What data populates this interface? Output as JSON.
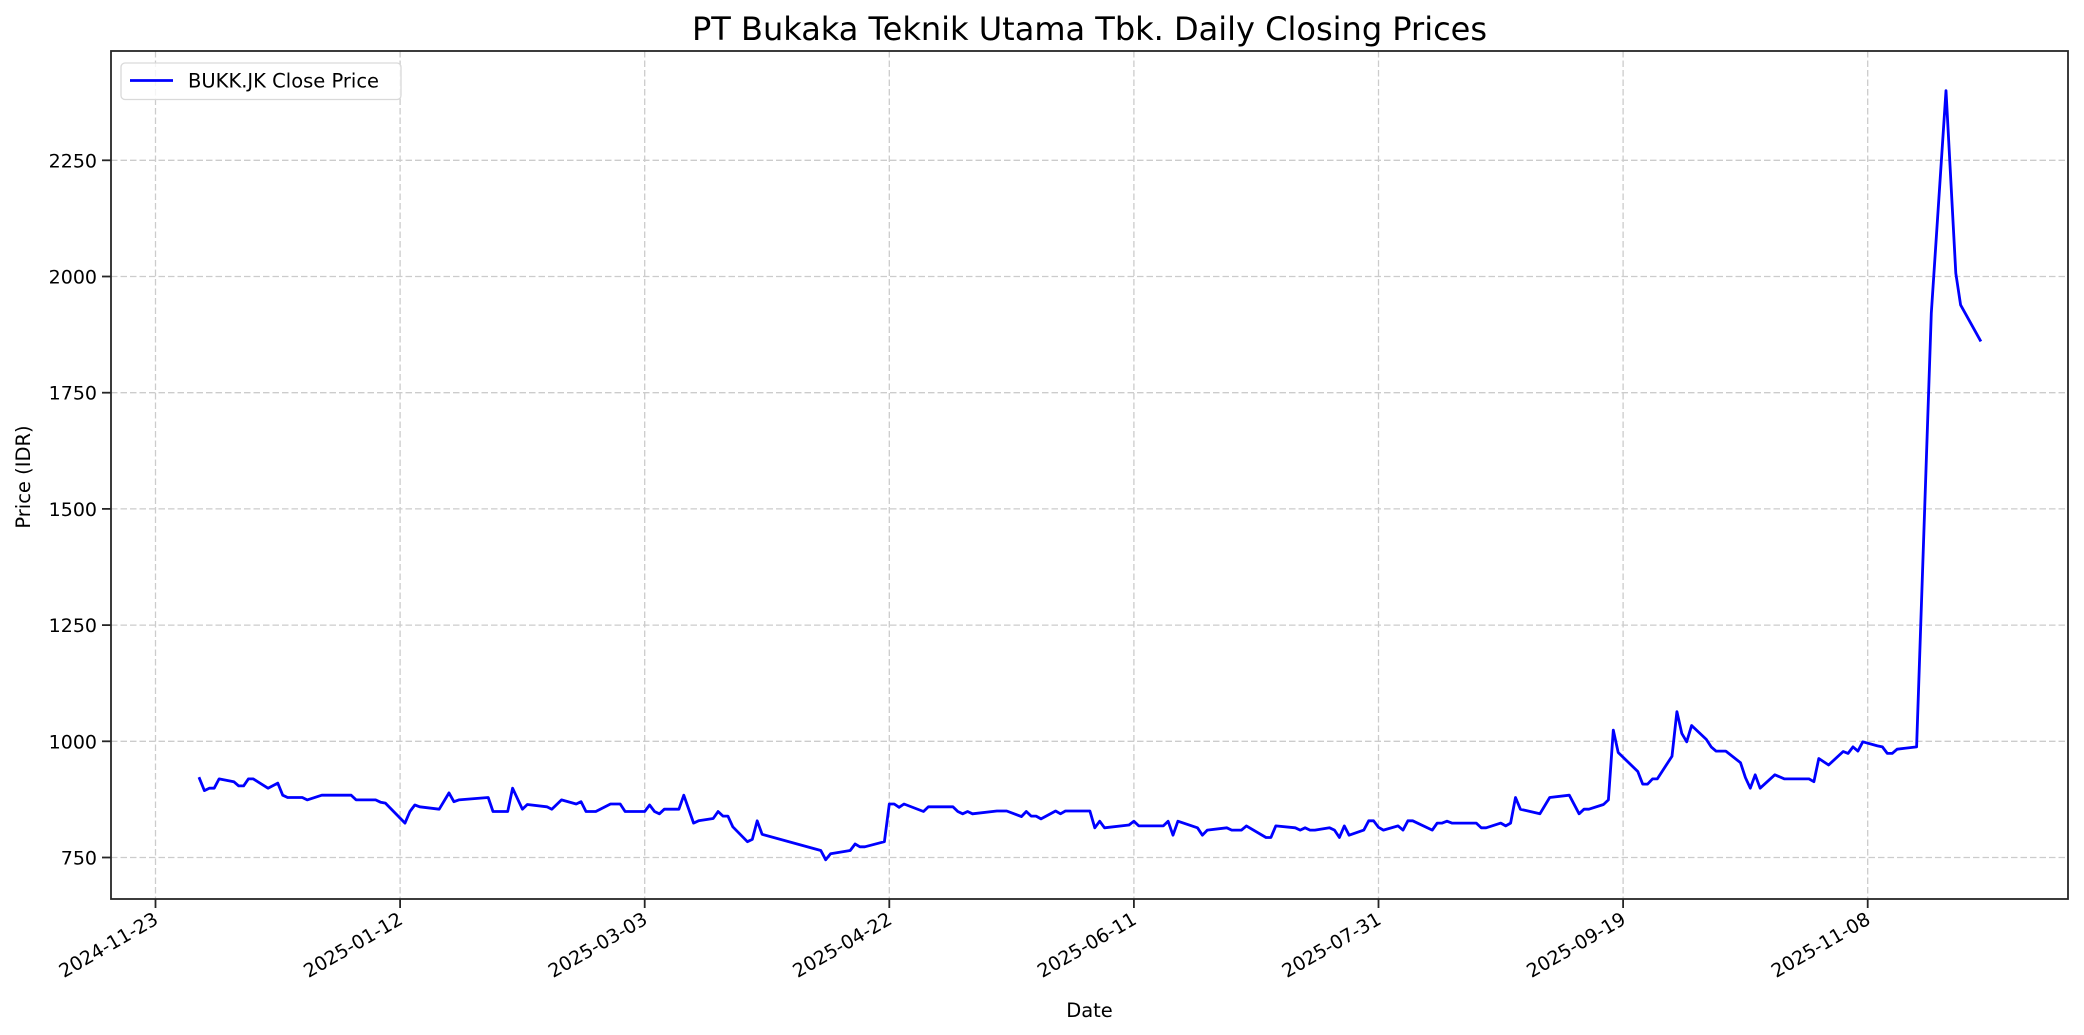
{
  "figure": {
    "title": "PT Bukaka Teknik Utama Tbk. Daily Closing Prices",
    "xlabel": "Date",
    "ylabel": "Price (IDR)",
    "legend_label": "BUKK.JK Close Price",
    "line_color": "#0000ff"
  },
  "chart_data": {
    "type": "line",
    "title": "PT Bukaka Teknik Utama Tbk. Daily Closing Prices",
    "xlabel": "Date",
    "ylabel": "Price (IDR)",
    "legend": [
      "BUKK.JK Close Price"
    ],
    "legend_position": "upper left",
    "grid": true,
    "x_ticks": [
      "2024-11-23",
      "2025-01-12",
      "2025-03-03",
      "2025-04-22",
      "2025-06-11",
      "2025-07-31",
      "2025-09-19",
      "2025-11-08"
    ],
    "y_ticks": [
      750,
      1000,
      1250,
      1500,
      1750,
      2000,
      2250
    ],
    "xlim": [
      "2024-11-16",
      "2025-12-18"
    ],
    "ylim": [
      667,
      2485
    ],
    "series": [
      {
        "name": "BUKK.JK Close Price",
        "color": "#0000ff",
        "x": [
          "2024-12-02",
          "2024-12-03",
          "2024-12-04",
          "2024-12-05",
          "2024-12-06",
          "2024-12-09",
          "2024-12-10",
          "2024-12-11",
          "2024-12-12",
          "2024-12-13",
          "2024-12-16",
          "2024-12-18",
          "2024-12-19",
          "2024-12-20",
          "2024-12-23",
          "2024-12-24",
          "2024-12-27",
          "2025-01-02",
          "2025-01-03",
          "2025-01-07",
          "2025-01-08",
          "2025-01-09",
          "2025-01-13",
          "2025-01-14",
          "2025-01-15",
          "2025-01-16",
          "2025-01-20",
          "2025-01-22",
          "2025-01-23",
          "2025-01-24",
          "2025-01-30",
          "2025-01-31",
          "2025-02-03",
          "2025-02-04",
          "2025-02-06",
          "2025-02-07",
          "2025-02-11",
          "2025-02-12",
          "2025-02-14",
          "2025-02-17",
          "2025-02-18",
          "2025-02-19",
          "2025-02-21",
          "2025-02-24",
          "2025-02-26",
          "2025-02-27",
          "2025-03-03",
          "2025-03-04",
          "2025-03-05",
          "2025-03-06",
          "2025-03-07",
          "2025-03-10",
          "2025-03-11",
          "2025-03-13",
          "2025-03-14",
          "2025-03-17",
          "2025-03-18",
          "2025-03-19",
          "2025-03-20",
          "2025-03-21",
          "2025-03-24",
          "2025-03-25",
          "2025-03-26",
          "2025-03-27",
          "2025-04-08",
          "2025-04-09",
          "2025-04-10",
          "2025-04-14",
          "2025-04-15",
          "2025-04-16",
          "2025-04-17",
          "2025-04-21",
          "2025-04-22",
          "2025-04-23",
          "2025-04-24",
          "2025-04-25",
          "2025-04-29",
          "2025-04-30",
          "2025-05-05",
          "2025-05-06",
          "2025-05-07",
          "2025-05-08",
          "2025-05-09",
          "2025-05-14",
          "2025-05-16",
          "2025-05-19",
          "2025-05-20",
          "2025-05-21",
          "2025-05-22",
          "2025-05-23",
          "2025-05-26",
          "2025-05-27",
          "2025-05-28",
          "2025-06-02",
          "2025-06-03",
          "2025-06-04",
          "2025-06-05",
          "2025-06-10",
          "2025-06-11",
          "2025-06-12",
          "2025-06-17",
          "2025-06-18",
          "2025-06-19",
          "2025-06-20",
          "2025-06-24",
          "2025-06-25",
          "2025-06-26",
          "2025-06-30",
          "2025-07-01",
          "2025-07-03",
          "2025-07-04",
          "2025-07-08",
          "2025-07-09",
          "2025-07-10",
          "2025-07-14",
          "2025-07-15",
          "2025-07-16",
          "2025-07-17",
          "2025-07-18",
          "2025-07-21",
          "2025-07-22",
          "2025-07-23",
          "2025-07-24",
          "2025-07-25",
          "2025-07-28",
          "2025-07-29",
          "2025-07-30",
          "2025-07-31",
          "2025-08-01",
          "2025-08-04",
          "2025-08-05",
          "2025-08-06",
          "2025-08-07",
          "2025-08-11",
          "2025-08-12",
          "2025-08-13",
          "2025-08-14",
          "2025-08-15",
          "2025-08-20",
          "2025-08-21",
          "2025-08-22",
          "2025-08-25",
          "2025-08-26",
          "2025-08-27",
          "2025-08-28",
          "2025-08-29",
          "2025-09-02",
          "2025-09-04",
          "2025-09-08",
          "2025-09-10",
          "2025-09-11",
          "2025-09-12",
          "2025-09-15",
          "2025-09-16",
          "2025-09-17",
          "2025-09-18",
          "2025-09-22",
          "2025-09-23",
          "2025-09-24",
          "2025-09-25",
          "2025-09-26",
          "2025-09-29",
          "2025-09-30",
          "2025-10-01",
          "2025-10-02",
          "2025-10-03",
          "2025-10-06",
          "2025-10-07",
          "2025-10-08",
          "2025-10-10",
          "2025-10-13",
          "2025-10-14",
          "2025-10-15",
          "2025-10-16",
          "2025-10-17",
          "2025-10-20",
          "2025-10-22",
          "2025-10-27",
          "2025-10-28",
          "2025-10-29",
          "2025-10-31",
          "2025-11-03",
          "2025-11-04",
          "2025-11-05",
          "2025-11-06",
          "2025-11-07",
          "2025-11-10",
          "2025-11-11",
          "2025-11-12",
          "2025-11-13",
          "2025-11-14",
          "2025-11-18",
          "2025-11-21",
          "2025-11-24",
          "2025-11-26",
          "2025-11-27",
          "2025-12-01"
        ],
        "values": [
          920,
          894,
          899,
          899,
          919,
          913,
          904,
          904,
          919,
          919,
          899,
          910,
          884,
          879,
          879,
          874,
          884,
          884,
          874,
          874,
          869,
          867,
          824,
          849,
          863,
          859,
          854,
          889,
          870,
          874,
          879,
          849,
          849,
          899,
          854,
          864,
          859,
          854,
          874,
          865,
          870,
          849,
          849,
          865,
          865,
          849,
          849,
          863,
          849,
          844,
          854,
          854,
          884,
          824,
          829,
          834,
          849,
          839,
          839,
          816,
          784,
          789,
          829,
          800,
          765,
          745,
          758,
          765,
          779,
          773,
          773,
          784,
          865,
          865,
          858,
          865,
          849,
          859,
          859,
          849,
          844,
          849,
          844,
          850,
          850,
          838,
          849,
          839,
          839,
          833,
          850,
          844,
          850,
          850,
          814,
          828,
          814,
          820,
          828,
          818,
          818,
          828,
          798,
          828,
          814,
          798,
          809,
          814,
          809,
          809,
          818,
          793,
          793,
          818,
          814,
          809,
          814,
          809,
          809,
          814,
          809,
          793,
          818,
          798,
          809,
          829,
          829,
          815,
          809,
          818,
          809,
          829,
          829,
          809,
          824,
          824,
          828,
          824,
          824,
          814,
          814,
          824,
          818,
          824,
          879,
          854,
          844,
          879,
          884,
          844,
          854,
          854,
          864,
          874,
          1024,
          976,
          935,
          908,
          908,
          919,
          919,
          968,
          1064,
          1017,
          999,
          1034,
          1004,
          988,
          979,
          979,
          954,
          922,
          899,
          928,
          899,
          928,
          919,
          919,
          913,
          963,
          949,
          978,
          974,
          988,
          979,
          999,
          990,
          988,
          974,
          974,
          983,
          988,
          1921,
          2400,
          2007,
          1939,
          1863
        ]
      }
    ]
  }
}
